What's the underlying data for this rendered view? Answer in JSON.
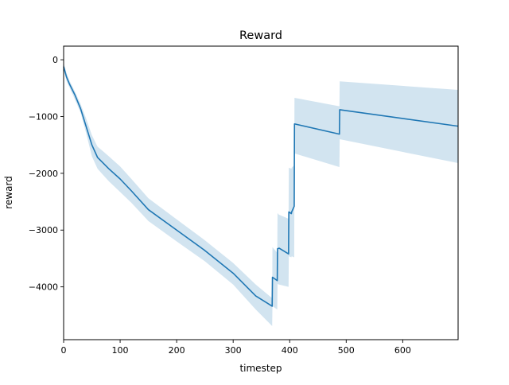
{
  "chart_data": {
    "type": "line",
    "title": "Reward",
    "xlabel": "timestep",
    "ylabel": "reward",
    "xlim": [
      0,
      698
    ],
    "ylim": [
      -4930,
      240
    ],
    "grid": false,
    "xticks": [
      0,
      100,
      200,
      300,
      400,
      500,
      600
    ],
    "xtick_labels": [
      "0",
      "100",
      "200",
      "300",
      "400",
      "500",
      "600"
    ],
    "yticks": [
      0,
      -1000,
      -2000,
      -3000,
      -4000
    ],
    "ytick_labels": [
      "0",
      "−1000",
      "−2000",
      "−3000",
      "−4000"
    ],
    "colors": {
      "line": "#1f77b4",
      "band": "#1f77b4"
    },
    "series": [
      {
        "x": [
          0,
          5,
          10,
          20,
          30,
          40,
          50,
          60,
          80,
          100,
          120,
          150,
          200,
          250,
          300,
          340,
          369,
          369.5,
          378,
          378.5,
          381,
          381.5,
          398,
          398.5,
          403,
          403.5,
          408,
          408.5,
          488,
          488.5,
          698
        ],
        "y": [
          -120,
          -300,
          -420,
          -620,
          -860,
          -1180,
          -1500,
          -1720,
          -1920,
          -2100,
          -2310,
          -2640,
          -3000,
          -3360,
          -3760,
          -4160,
          -4340,
          -3830,
          -3890,
          -3330,
          -3320,
          -3320,
          -3420,
          -2680,
          -2710,
          -2680,
          -2580,
          -1130,
          -1310,
          -880,
          -1170
        ]
      }
    ],
    "band": {
      "x": [
        0,
        5,
        10,
        20,
        30,
        40,
        50,
        60,
        80,
        100,
        120,
        150,
        200,
        250,
        300,
        340,
        369,
        369.5,
        378,
        378.5,
        381,
        381.5,
        398,
        398.5,
        403,
        403.5,
        408,
        408.5,
        488,
        488.5,
        698
      ],
      "upper": [
        -50,
        -230,
        -360,
        -560,
        -780,
        -1040,
        -1330,
        -1530,
        -1700,
        -1880,
        -2100,
        -2440,
        -2810,
        -3180,
        -3580,
        -3960,
        -4200,
        -3300,
        -3400,
        -2700,
        -2730,
        -2730,
        -2800,
        -1900,
        -1920,
        -1900,
        -1860,
        -670,
        -820,
        -380,
        -530
      ],
      "lower": [
        -160,
        -370,
        -480,
        -700,
        -930,
        -1300,
        -1700,
        -1920,
        -2140,
        -2330,
        -2520,
        -2840,
        -3200,
        -3550,
        -3960,
        -4400,
        -4690,
        -4340,
        -4400,
        -3950,
        -3960,
        -3960,
        -4000,
        -3460,
        -3480,
        -3460,
        -3480,
        -1650,
        -1890,
        -1400,
        -1820
      ]
    }
  }
}
